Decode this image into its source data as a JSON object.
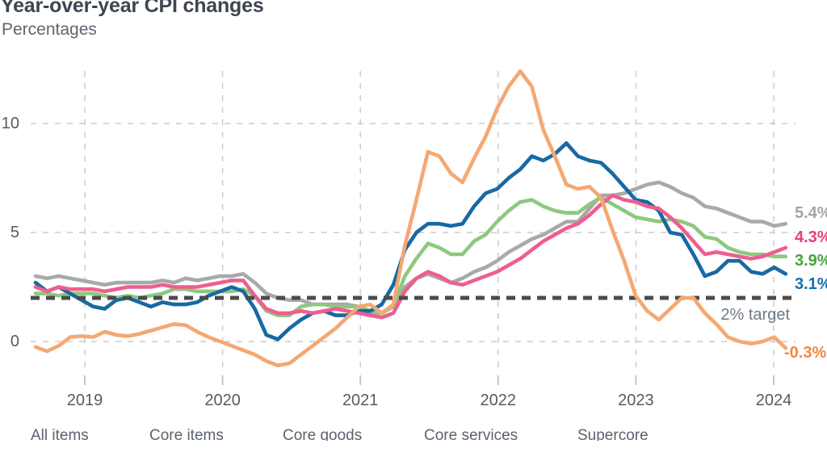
{
  "header": {
    "title": "Year-over-year CPI changes",
    "subtitle": "Percentages"
  },
  "chart_data": {
    "type": "line",
    "title": "Year-over-year CPI changes",
    "subtitle": "Percentages",
    "frequency": "monthly",
    "x_start": "2018-08",
    "x_end": "2024-01",
    "grid": "dashed",
    "ylim": [
      -1.5,
      13
    ],
    "y_axis": {
      "ticks": [
        {
          "value": 10,
          "label": "10"
        },
        {
          "value": 5,
          "label": "5"
        },
        {
          "value": 0,
          "label": "0"
        }
      ]
    },
    "x_axis": {
      "labels": [
        "2019",
        "2020",
        "2021",
        "2022",
        "2023",
        "2024"
      ]
    },
    "target_line": {
      "value": 2,
      "label": "2% target",
      "color": "#4b4b4b"
    },
    "legend": [
      "All items",
      "Core items",
      "Core goods",
      "Core services",
      "Supercore"
    ],
    "series": [
      {
        "name": "Core services",
        "color": "#a7a9ab",
        "label_color": "#a2a5a8",
        "end_label": "5.4%",
        "values": [
          3.0,
          2.9,
          3.0,
          2.9,
          2.8,
          2.7,
          2.6,
          2.7,
          2.7,
          2.7,
          2.7,
          2.8,
          2.7,
          2.9,
          2.8,
          2.9,
          3.0,
          3.0,
          3.1,
          2.7,
          2.2,
          2.0,
          1.9,
          1.9,
          1.7,
          1.7,
          1.7,
          1.7,
          1.6,
          1.3,
          1.3,
          1.6,
          2.5,
          2.9,
          3.1,
          2.9,
          2.7,
          2.9,
          3.2,
          3.4,
          3.7,
          4.1,
          4.4,
          4.7,
          4.9,
          5.2,
          5.5,
          5.5,
          6.1,
          6.7,
          6.7,
          6.8,
          7.0,
          7.2,
          7.3,
          7.1,
          6.8,
          6.6,
          6.2,
          6.1,
          5.9,
          5.7,
          5.5,
          5.5,
          5.3,
          5.4
        ]
      },
      {
        "name": "Core items",
        "color": "#8dc87f",
        "label_color": "#4ba33f",
        "end_label": "3.9%",
        "values": [
          2.2,
          2.2,
          2.1,
          2.2,
          2.2,
          2.2,
          2.1,
          2.0,
          2.1,
          2.0,
          2.1,
          2.2,
          2.4,
          2.4,
          2.3,
          2.3,
          2.3,
          2.3,
          2.4,
          2.1,
          1.4,
          1.2,
          1.2,
          1.6,
          1.7,
          1.7,
          1.6,
          1.6,
          1.6,
          1.4,
          1.3,
          1.6,
          3.0,
          3.8,
          4.5,
          4.3,
          4.0,
          4.0,
          4.6,
          4.9,
          5.5,
          6.0,
          6.4,
          6.5,
          6.2,
          6.0,
          5.9,
          5.9,
          6.3,
          6.6,
          6.3,
          6.0,
          5.7,
          5.6,
          5.5,
          5.6,
          5.5,
          5.3,
          4.8,
          4.7,
          4.3,
          4.1,
          4.0,
          4.0,
          3.9,
          3.9
        ]
      },
      {
        "name": "All items",
        "color": "#1769a3",
        "label_color": "#1470ad",
        "end_label": "3.1%",
        "values": [
          2.7,
          2.3,
          2.5,
          2.2,
          1.9,
          1.6,
          1.5,
          1.9,
          2.0,
          1.8,
          1.6,
          1.8,
          1.7,
          1.7,
          1.8,
          2.1,
          2.3,
          2.5,
          2.3,
          1.5,
          0.3,
          0.1,
          0.6,
          1.0,
          1.3,
          1.4,
          1.2,
          1.2,
          1.4,
          1.4,
          1.7,
          2.6,
          4.2,
          5.0,
          5.4,
          5.4,
          5.3,
          5.4,
          6.2,
          6.8,
          7.0,
          7.5,
          7.9,
          8.5,
          8.3,
          8.6,
          9.1,
          8.5,
          8.3,
          8.2,
          7.7,
          7.1,
          6.5,
          6.4,
          6.0,
          5.0,
          4.9,
          4.0,
          3.0,
          3.2,
          3.7,
          3.7,
          3.2,
          3.1,
          3.4,
          3.1
        ]
      },
      {
        "name": "Supercore",
        "color": "#ee5e8e",
        "label_color": "#e84077",
        "end_label": "4.3%",
        "values": [
          2.5,
          2.3,
          2.5,
          2.4,
          2.4,
          2.4,
          2.3,
          2.4,
          2.5,
          2.5,
          2.5,
          2.6,
          2.5,
          2.5,
          2.5,
          2.6,
          2.7,
          2.8,
          2.8,
          2.1,
          1.5,
          1.3,
          1.3,
          1.4,
          1.3,
          1.4,
          1.5,
          1.4,
          1.3,
          1.2,
          1.1,
          1.3,
          2.3,
          2.9,
          3.2,
          3.0,
          2.7,
          2.6,
          2.8,
          3.0,
          3.2,
          3.5,
          3.8,
          4.2,
          4.6,
          4.9,
          5.2,
          5.4,
          5.8,
          6.3,
          6.7,
          6.5,
          6.4,
          6.2,
          6.1,
          5.7,
          5.2,
          4.6,
          4.0,
          4.1,
          4.0,
          3.9,
          3.8,
          3.9,
          4.1,
          4.3
        ]
      },
      {
        "name": "Core goods",
        "color": "#f4a872",
        "label_color": "#ef8a3e",
        "end_label": "-0.3%",
        "values": [
          -0.25,
          -0.45,
          -0.2,
          0.2,
          0.25,
          0.2,
          0.45,
          0.3,
          0.25,
          0.35,
          0.5,
          0.65,
          0.8,
          0.75,
          0.45,
          0.2,
          0.0,
          -0.2,
          -0.4,
          -0.6,
          -0.9,
          -1.1,
          -1.0,
          -0.6,
          -0.2,
          0.2,
          0.6,
          1.1,
          1.6,
          1.7,
          1.3,
          1.7,
          4.4,
          6.5,
          8.7,
          8.5,
          7.7,
          7.3,
          8.4,
          9.4,
          10.7,
          11.7,
          12.4,
          11.7,
          9.7,
          8.5,
          7.2,
          7.0,
          7.1,
          6.6,
          5.1,
          3.7,
          2.1,
          1.4,
          1.0,
          1.5,
          2.0,
          2.0,
          1.3,
          0.8,
          0.2,
          0.0,
          -0.1,
          0.0,
          0.2,
          -0.3
        ]
      }
    ]
  }
}
